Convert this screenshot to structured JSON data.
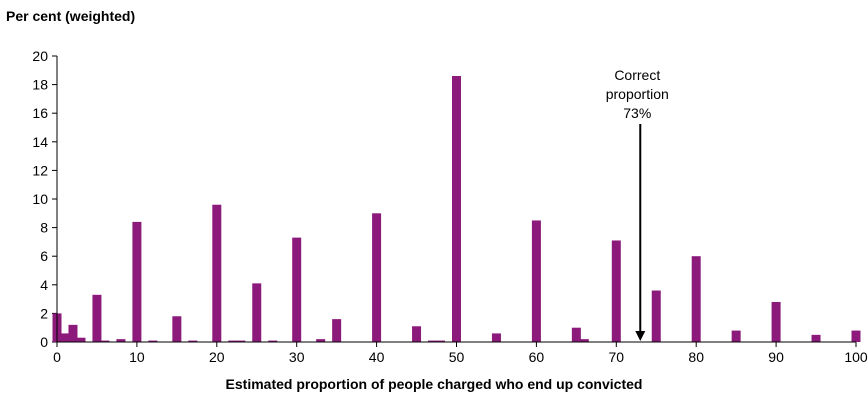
{
  "chart_data": {
    "type": "bar",
    "ylabel": "Per cent (weighted)",
    "xlabel": "Estimated proportion of people charged who end up convicted",
    "xlim": [
      0,
      100
    ],
    "ylim": [
      0,
      20
    ],
    "x_ticks": [
      0,
      10,
      20,
      30,
      40,
      50,
      60,
      70,
      80,
      90,
      100
    ],
    "y_ticks": [
      0,
      2,
      4,
      6,
      8,
      10,
      12,
      14,
      16,
      18,
      20
    ],
    "grid": false,
    "bar_color": "#8B1A7A",
    "x": [
      0,
      1,
      2,
      3,
      5,
      6,
      8,
      10,
      12,
      15,
      17,
      20,
      22,
      23,
      25,
      27,
      30,
      33,
      35,
      40,
      45,
      47,
      48,
      50,
      55,
      60,
      65,
      66,
      70,
      75,
      80,
      85,
      90,
      95,
      100
    ],
    "values": [
      2.0,
      0.6,
      1.2,
      0.3,
      3.3,
      0.1,
      0.2,
      8.4,
      0.1,
      1.8,
      0.1,
      9.6,
      0.1,
      0.1,
      4.1,
      0.1,
      7.3,
      0.2,
      1.6,
      9.0,
      1.1,
      0.1,
      0.1,
      18.6,
      0.6,
      8.5,
      1.0,
      0.2,
      7.1,
      3.6,
      6.0,
      0.8,
      2.8,
      0.5,
      0.8
    ],
    "annotation": {
      "lines": [
        "Correct",
        "proportion",
        "73%"
      ],
      "x": 73
    }
  }
}
